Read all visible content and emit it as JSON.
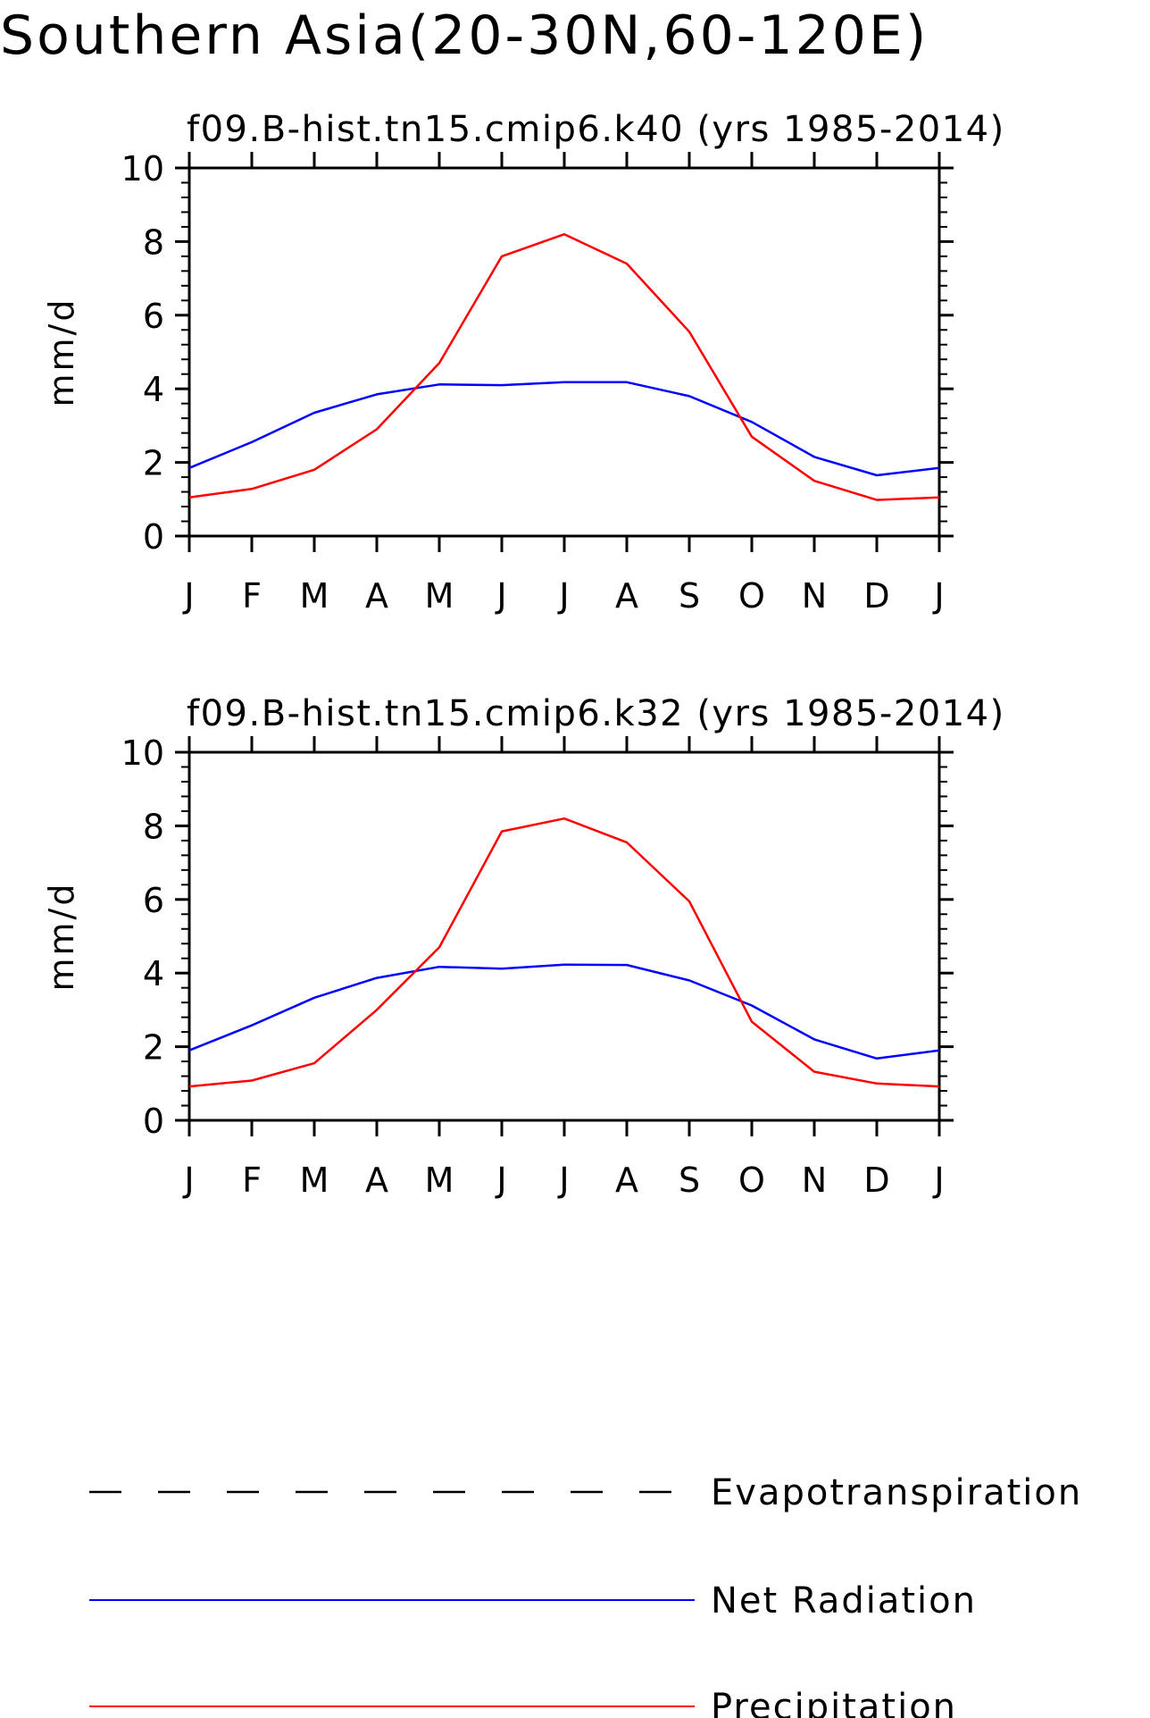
{
  "figure": {
    "title": "Southern Asia(20-30N,60-120E)"
  },
  "legend": {
    "placement": "bottom",
    "entries": [
      {
        "label": "Evapotranspiration",
        "color": "#000000",
        "style": "dashed"
      },
      {
        "label": "Net Radiation",
        "color": "#0000ff",
        "style": "solid"
      },
      {
        "label": "Precipitation",
        "color": "#ff0000",
        "style": "solid"
      }
    ]
  },
  "chart_data": [
    {
      "type": "line",
      "title": "f09.B-hist.tn15.cmip6.k40 (yrs 1985-2014)",
      "ylabel": "mm/d",
      "xlabel": "",
      "categories": [
        "J",
        "F",
        "M",
        "A",
        "M",
        "J",
        "J",
        "A",
        "S",
        "O",
        "N",
        "D",
        "J"
      ],
      "ylim": [
        0,
        10
      ],
      "yticks": [
        0,
        2,
        4,
        6,
        8,
        10
      ],
      "grid": false,
      "series": [
        {
          "name": "Net Radiation",
          "color": "#0000ff",
          "values": [
            1.85,
            2.55,
            3.35,
            3.85,
            4.12,
            4.1,
            4.18,
            4.18,
            3.8,
            3.1,
            2.15,
            1.65,
            1.85
          ]
        },
        {
          "name": "Precipitation",
          "color": "#ff0000",
          "values": [
            1.05,
            1.28,
            1.8,
            2.9,
            4.7,
            7.6,
            8.2,
            7.4,
            5.55,
            2.7,
            1.5,
            0.98,
            1.05
          ]
        }
      ]
    },
    {
      "type": "line",
      "title": "f09.B-hist.tn15.cmip6.k32 (yrs 1985-2014)",
      "ylabel": "mm/d",
      "xlabel": "",
      "categories": [
        "J",
        "F",
        "M",
        "A",
        "M",
        "J",
        "J",
        "A",
        "S",
        "O",
        "N",
        "D",
        "J"
      ],
      "ylim": [
        0,
        10
      ],
      "yticks": [
        0,
        2,
        4,
        6,
        8,
        10
      ],
      "grid": false,
      "series": [
        {
          "name": "Net Radiation",
          "color": "#0000ff",
          "values": [
            1.9,
            2.58,
            3.33,
            3.87,
            4.17,
            4.12,
            4.23,
            4.22,
            3.8,
            3.12,
            2.2,
            1.68,
            1.9
          ]
        },
        {
          "name": "Precipitation",
          "color": "#ff0000",
          "values": [
            0.92,
            1.08,
            1.55,
            3.0,
            4.7,
            7.85,
            8.2,
            7.55,
            5.95,
            2.68,
            1.32,
            1.0,
            0.92
          ]
        }
      ]
    }
  ]
}
